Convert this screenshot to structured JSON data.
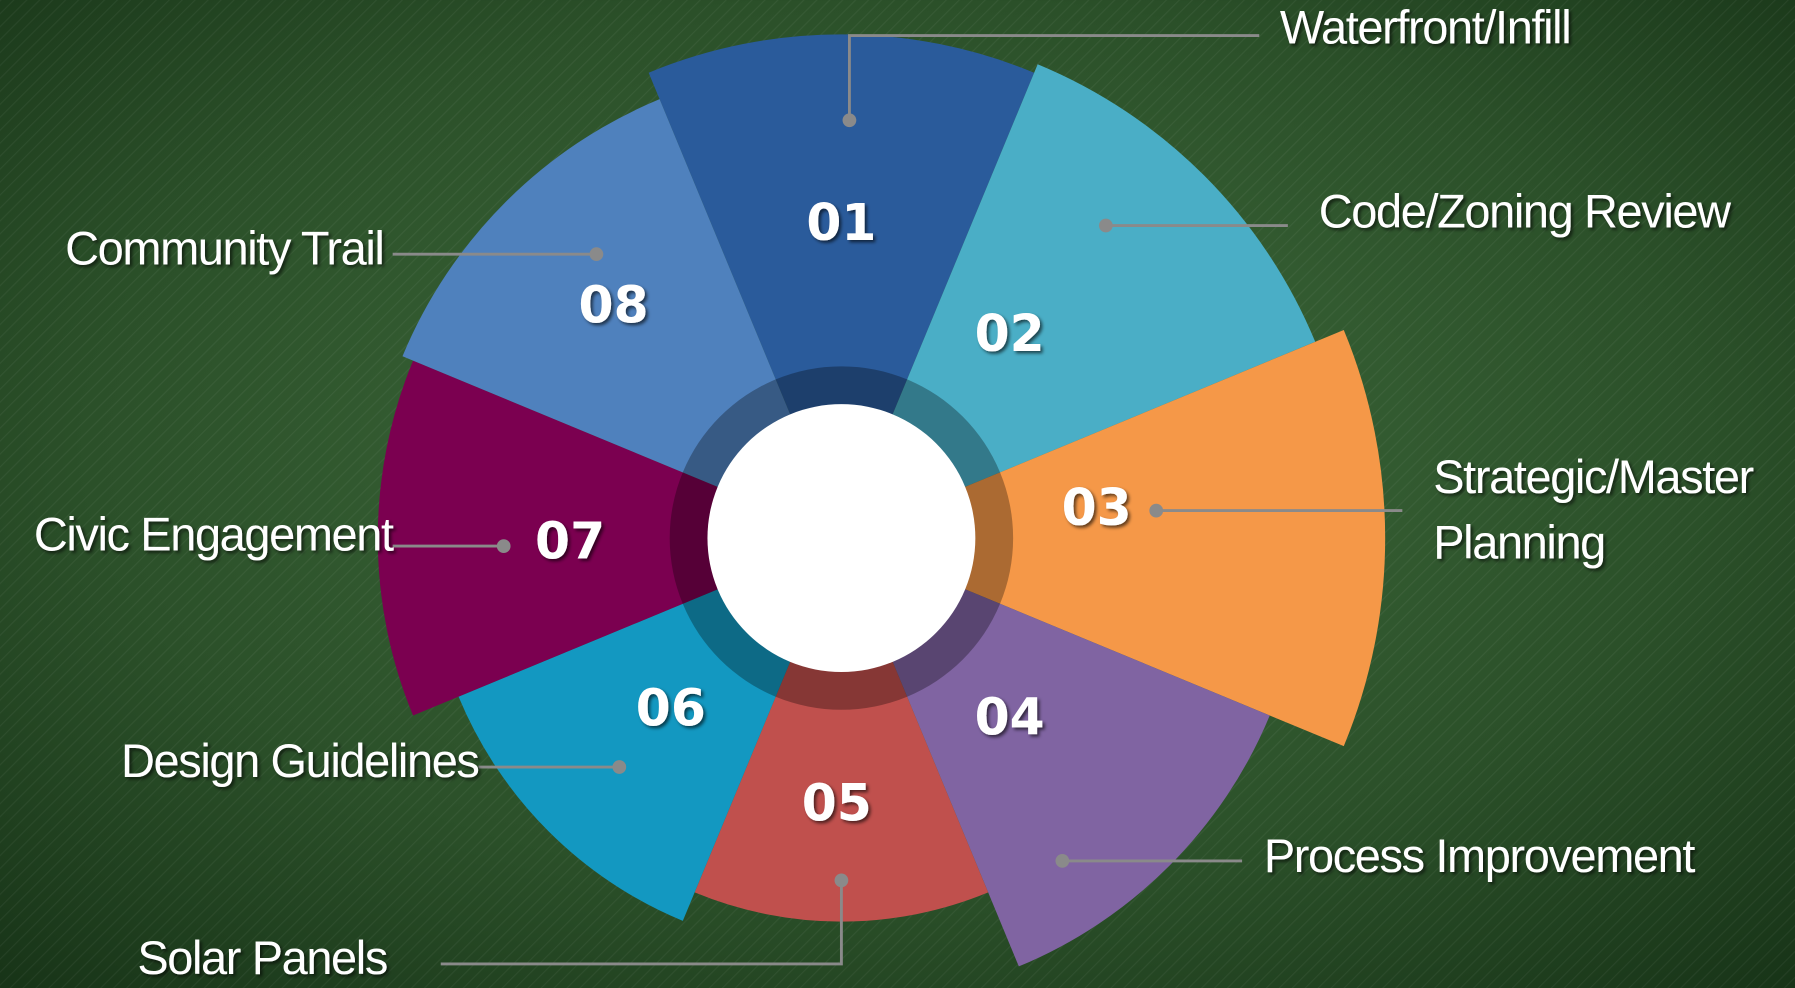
{
  "segments": [
    {
      "number": "01",
      "label": [
        "Waterfront/Infill"
      ]
    },
    {
      "number": "02",
      "label": [
        "Code/Zoning Review"
      ]
    },
    {
      "number": "03",
      "label": [
        "Strategic/Master",
        "Planning"
      ]
    },
    {
      "number": "04",
      "label": [
        "Process Improvement"
      ]
    },
    {
      "number": "05",
      "label": [
        "Solar Panels"
      ]
    },
    {
      "number": "06",
      "label": [
        "Design Guidelines"
      ]
    },
    {
      "number": "07",
      "label": [
        "Civic Engagement"
      ]
    },
    {
      "number": "08",
      "label": [
        "Community Trail"
      ]
    }
  ]
}
